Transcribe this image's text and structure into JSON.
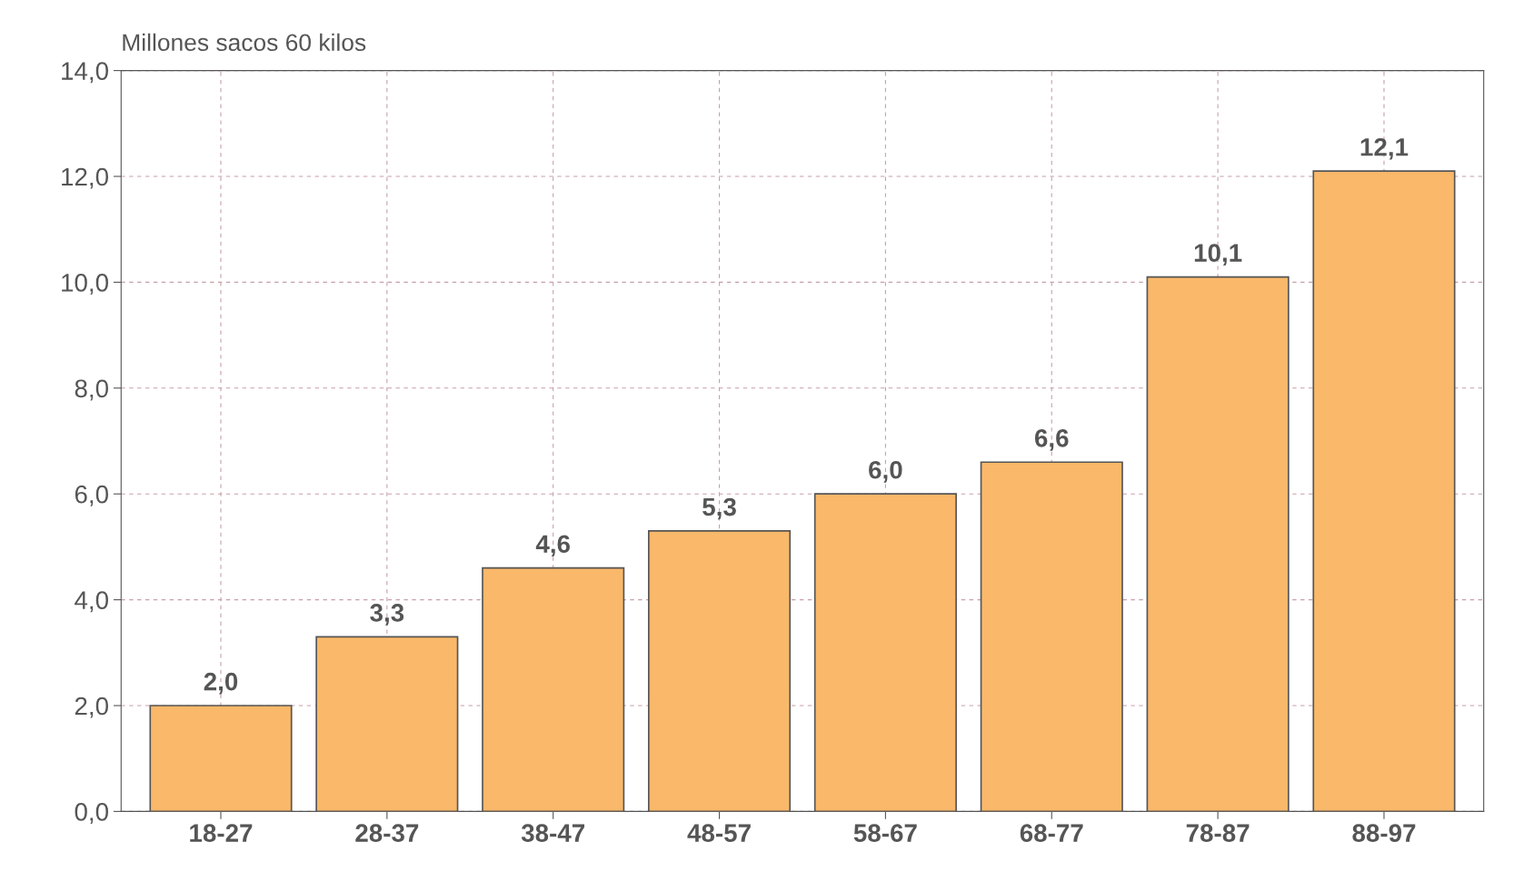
{
  "chart_data": {
    "type": "bar",
    "ylabel": "Millones sacos 60 kilos",
    "categories": [
      "18-27",
      "28-37",
      "38-47",
      "48-57",
      "58-67",
      "68-77",
      "78-87",
      "88-97"
    ],
    "values": [
      2.0,
      3.3,
      4.6,
      5.3,
      6.0,
      6.6,
      10.1,
      12.1
    ],
    "value_labels": [
      "2,0",
      "3,3",
      "4,6",
      "5,3",
      "6,0",
      "6,6",
      "10,1",
      "12,1"
    ],
    "color": "#f9b86a",
    "ylim": [
      0,
      14
    ],
    "yticks": [
      {
        "value": 0,
        "label": "0,0"
      },
      {
        "value": 2,
        "label": "2,0"
      },
      {
        "value": 4,
        "label": "4,0"
      },
      {
        "value": 6,
        "label": "6,0"
      },
      {
        "value": 8,
        "label": "8,0"
      },
      {
        "value": 10,
        "label": "10,0"
      },
      {
        "value": 12,
        "label": "12,0"
      },
      {
        "value": 14,
        "label": "14,0"
      }
    ],
    "grid": true
  }
}
